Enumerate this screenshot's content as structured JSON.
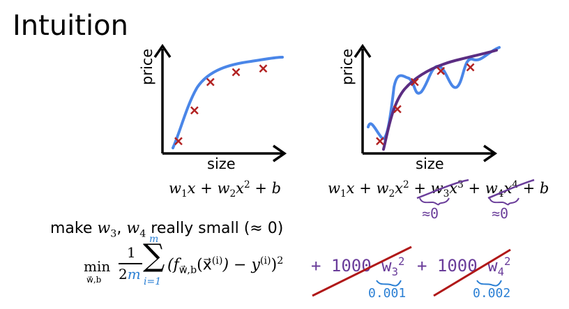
{
  "title": "Intuition",
  "left_plot": {
    "ylabel": "price",
    "xlabel": "size",
    "equation": {
      "w1": "w",
      "s1": "1",
      "x1": "x + ",
      "w2": "w",
      "s2": "2",
      "x2": "x",
      "p2": "2",
      "tail": " + b"
    }
  },
  "right_plot": {
    "ylabel": "price",
    "xlabel": "size",
    "equation": {
      "w1": "w",
      "s1": "1",
      "x1": "x + ",
      "w2": "w",
      "s2": "2",
      "x2": "x",
      "p2": "2",
      "plus3": " + ",
      "w3": "w",
      "s3": "3",
      "x3": "x",
      "p3": "3",
      "plus4": " + ",
      "w4": "w",
      "s4": "4",
      "x4": "x",
      "p4": "4",
      "tail": " + b"
    },
    "annotation_w3": "≈0",
    "annotation_w4": "≈0"
  },
  "make_small": {
    "prefix": "make ",
    "w3": "w",
    "s3": "3",
    "comma": ", ",
    "w4": "w",
    "s4": "4",
    "suffix": " really small (≈ 0)"
  },
  "cost": {
    "min": "min",
    "min_sub": "w⃗,b",
    "frac_num": "1",
    "frac_den_2": "2",
    "frac_den_m": "m",
    "sum_top": "m",
    "sum_bottom": "i=1",
    "body_open": "(f",
    "f_sub": "w⃗,b",
    "arg": "(x⃗",
    "arg_sup": "(i)",
    "minus_y": ") − y",
    "y_sup": "(i)",
    "close": ")",
    "sq": "2"
  },
  "penalty": {
    "term1": "+ 1000",
    "w3": "w",
    "s3": "3",
    "p3": "2",
    "val3": "0.001",
    "term2": "+ 1000",
    "w4": "w",
    "s4": "4",
    "p4": "2",
    "val4": "0.002"
  },
  "colors": {
    "fit": "#4a86e8",
    "quad_fit": "#5b2d82",
    "marker": "#b22222",
    "annotation": "#6a3d9a",
    "blue_ann": "#2a7fd4",
    "strike": "#b01818"
  },
  "chart_data": [
    {
      "type": "scatter",
      "title": "",
      "xlabel": "size",
      "ylabel": "price",
      "x": [
        1,
        2,
        3,
        4.6,
        6.3
      ],
      "y": [
        1,
        3.5,
        5.8,
        6.6,
        6.9
      ],
      "xlim": [
        0,
        7.5
      ],
      "ylim": [
        0,
        8.5
      ],
      "fit": "smooth concave curve through points"
    },
    {
      "type": "scatter",
      "title": "",
      "xlabel": "size",
      "ylabel": "price",
      "x": [
        1,
        2,
        3,
        4.5,
        6.2
      ],
      "y": [
        1,
        3.6,
        5.8,
        6.7,
        7.0
      ],
      "xlim": [
        0,
        7.5
      ],
      "ylim": [
        0,
        8.5
      ],
      "fit": "wiggly high-order curve plus smooth curve"
    }
  ]
}
